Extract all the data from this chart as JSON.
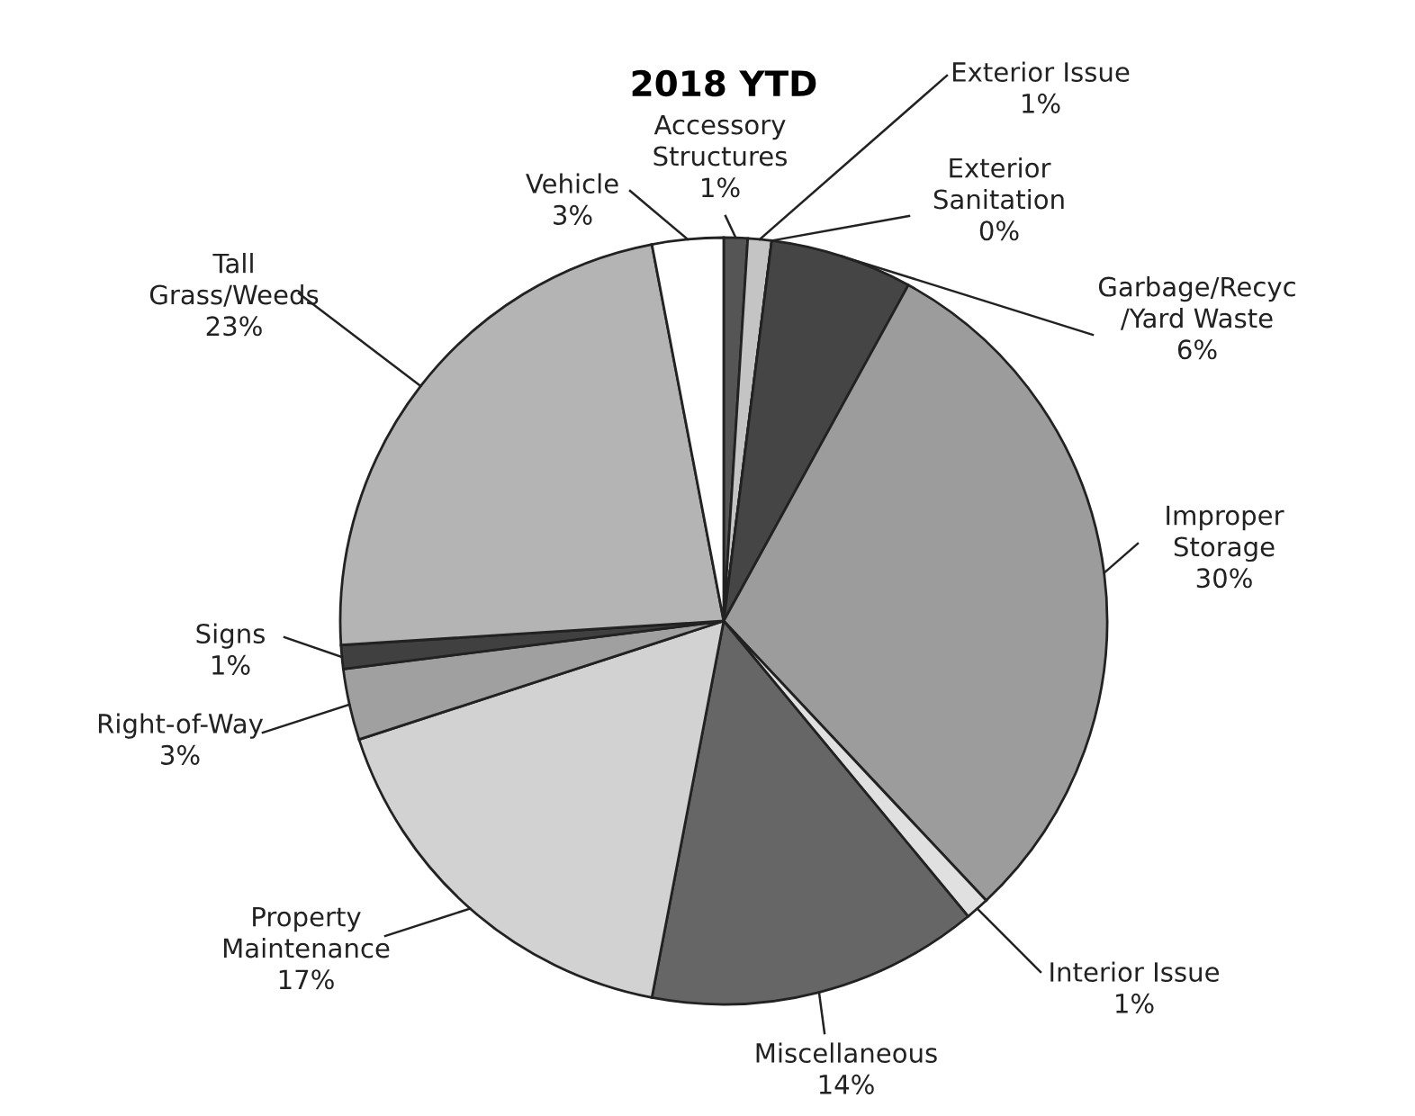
{
  "chart_data": {
    "type": "pie",
    "title": "2018 YTD",
    "categories": [
      "Accessory\nStructures",
      "Exterior Issue",
      "Exterior\nSanitation",
      "Garbage/Recyc\n/Yard Waste",
      "Improper\nStorage",
      "Interior Issue",
      "Miscellaneous",
      "Property\nMaintenance",
      "Right-of-Way",
      "Signs",
      "Tall\nGrass/Weeds",
      "Vehicle"
    ],
    "values": [
      1,
      1,
      0,
      6,
      30,
      1,
      14,
      17,
      3,
      1,
      23,
      3
    ],
    "value_labels": [
      "1%",
      "1%",
      "0%",
      "6%",
      "30%",
      "1%",
      "14%",
      "17%",
      "3%",
      "1%",
      "23%",
      "3%"
    ],
    "colors": [
      "#555555",
      "#c4c4c4",
      "#8a8a8a",
      "#454545",
      "#9c9c9c",
      "#e0e0e0",
      "#666666",
      "#d2d2d2",
      "#a0a0a0",
      "#404040",
      "#b4b4b4",
      "#ffffff"
    ],
    "legend": false
  }
}
